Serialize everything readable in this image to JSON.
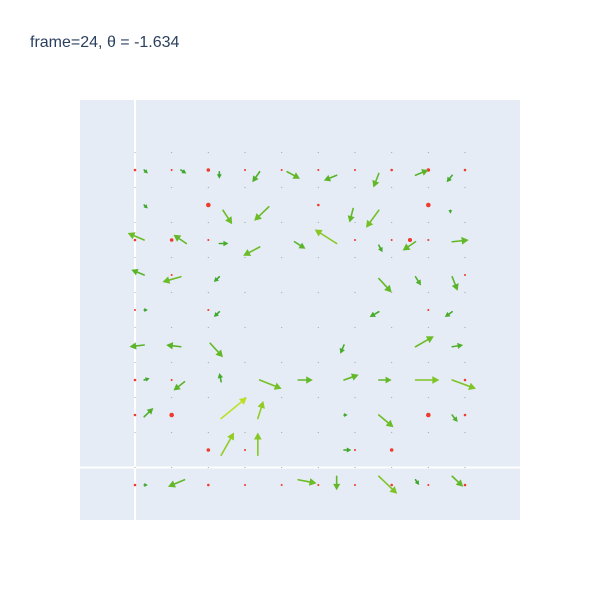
{
  "title": {
    "frame_label": "frame",
    "frame": 24,
    "theta_label": "θ",
    "theta": "-1.634"
  },
  "colors": {
    "background": "#e5ecf6",
    "zero_line": "#ffffff",
    "dot": "#ef3b2c",
    "arrow_dark": "#2ca02c",
    "arrow_light": "#e3ef1e"
  },
  "chart_data": {
    "type": "quiver",
    "title": "frame=24, θ =  -1.634",
    "xlabel": "",
    "ylabel": "",
    "xlim": [
      -0.3,
      2.1
    ],
    "ylim": [
      -0.3,
      2.1
    ],
    "grid": false,
    "zero_lines": true,
    "grid_x": [
      0.0,
      0.2,
      0.4,
      0.6,
      0.8,
      1.0,
      1.2,
      1.4,
      1.6,
      1.8
    ],
    "grid_y": [
      0.0,
      0.2,
      0.4,
      0.6,
      0.8,
      1.0,
      1.2,
      1.4,
      1.6,
      1.8
    ],
    "markers": [
      {
        "x": 0.0,
        "y": 1.7,
        "size": 2
      },
      {
        "x": 0.2,
        "y": 1.7,
        "size": 1.5
      },
      {
        "x": 0.4,
        "y": 1.7,
        "size": 3
      },
      {
        "x": 0.6,
        "y": 1.7,
        "size": 1.5
      },
      {
        "x": 0.8,
        "y": 1.7,
        "size": 1.5
      },
      {
        "x": 1.0,
        "y": 1.7,
        "size": 1.5
      },
      {
        "x": 1.2,
        "y": 1.7,
        "size": 1.5
      },
      {
        "x": 1.4,
        "y": 1.7,
        "size": 2
      },
      {
        "x": 1.6,
        "y": 1.7,
        "size": 3
      },
      {
        "x": 1.8,
        "y": 1.7,
        "size": 2
      },
      {
        "x": 0.4,
        "y": 1.5,
        "size": 4
      },
      {
        "x": 1.0,
        "y": 1.5,
        "size": 2
      },
      {
        "x": 1.6,
        "y": 1.5,
        "size": 4
      },
      {
        "x": 0.0,
        "y": 1.3,
        "size": 2
      },
      {
        "x": 0.2,
        "y": 1.3,
        "size": 3
      },
      {
        "x": 0.4,
        "y": 1.3,
        "size": 1.5
      },
      {
        "x": 1.2,
        "y": 1.3,
        "size": 1.5
      },
      {
        "x": 1.4,
        "y": 1.3,
        "size": 1.5
      },
      {
        "x": 1.6,
        "y": 1.3,
        "size": 1.5
      },
      {
        "x": 1.8,
        "y": 1.3,
        "size": 2
      },
      {
        "x": 1.5,
        "y": 1.3,
        "size": 3.5
      },
      {
        "x": 0.2,
        "y": 1.1,
        "size": 1.5
      },
      {
        "x": 1.8,
        "y": 1.1,
        "size": 1.5
      },
      {
        "x": 0.0,
        "y": 0.9,
        "size": 1.5
      },
      {
        "x": 0.4,
        "y": 0.9,
        "size": 1.5
      },
      {
        "x": 1.6,
        "y": 0.9,
        "size": 1.5
      },
      {
        "x": 0.0,
        "y": 0.5,
        "size": 2
      },
      {
        "x": 0.2,
        "y": 0.5,
        "size": 1.5
      },
      {
        "x": 1.8,
        "y": 0.5,
        "size": 2
      },
      {
        "x": 0.0,
        "y": 0.3,
        "size": 2
      },
      {
        "x": 0.2,
        "y": 0.3,
        "size": 4
      },
      {
        "x": 1.6,
        "y": 0.3,
        "size": 4
      },
      {
        "x": 1.8,
        "y": 0.3,
        "size": 2
      },
      {
        "x": 0.4,
        "y": 0.1,
        "size": 3
      },
      {
        "x": 0.6,
        "y": 0.1,
        "size": 1.5
      },
      {
        "x": 1.2,
        "y": 0.1,
        "size": 1.5
      },
      {
        "x": 1.4,
        "y": 0.1,
        "size": 3
      },
      {
        "x": 0.0,
        "y": -0.1,
        "size": 2
      },
      {
        "x": 0.2,
        "y": -0.1,
        "size": 1.5
      },
      {
        "x": 0.4,
        "y": -0.1,
        "size": 2
      },
      {
        "x": 0.6,
        "y": -0.1,
        "size": 1.5
      },
      {
        "x": 0.8,
        "y": -0.1,
        "size": 1.5
      },
      {
        "x": 1.0,
        "y": -0.1,
        "size": 1.5
      },
      {
        "x": 1.2,
        "y": -0.1,
        "size": 1.5
      },
      {
        "x": 1.4,
        "y": -0.1,
        "size": 2
      },
      {
        "x": 1.6,
        "y": -0.1,
        "size": 1.5
      },
      {
        "x": 1.8,
        "y": -0.1,
        "size": 2
      }
    ],
    "arrows": [
      {
        "x": 0.05,
        "y": 1.7,
        "u": 0.02,
        "v": -0.02,
        "c": 0.1
      },
      {
        "x": 0.25,
        "y": 1.7,
        "u": 0.03,
        "v": -0.02,
        "c": 0.1
      },
      {
        "x": 0.46,
        "y": 1.69,
        "u": 0.0,
        "v": -0.04,
        "c": 0.1
      },
      {
        "x": 0.68,
        "y": 1.69,
        "u": -0.04,
        "v": -0.06,
        "c": 0.2
      },
      {
        "x": 0.83,
        "y": 1.69,
        "u": 0.07,
        "v": -0.04,
        "c": 0.3
      },
      {
        "x": 1.1,
        "y": 1.67,
        "u": -0.07,
        "v": -0.03,
        "c": 0.25
      },
      {
        "x": 1.33,
        "y": 1.68,
        "u": -0.03,
        "v": -0.08,
        "c": 0.3
      },
      {
        "x": 1.53,
        "y": 1.67,
        "u": 0.07,
        "v": 0.03,
        "c": 0.25
      },
      {
        "x": 1.73,
        "y": 1.67,
        "u": -0.03,
        "v": -0.04,
        "c": 0.15
      },
      {
        "x": 0.05,
        "y": 1.5,
        "u": 0.02,
        "v": -0.02,
        "c": 0.1
      },
      {
        "x": 0.48,
        "y": 1.47,
        "u": 0.05,
        "v": -0.08,
        "c": 0.35
      },
      {
        "x": 0.73,
        "y": 1.49,
        "u": -0.08,
        "v": -0.08,
        "c": 0.35
      },
      {
        "x": 1.19,
        "y": 1.48,
        "u": -0.02,
        "v": -0.08,
        "c": 0.3
      },
      {
        "x": 1.33,
        "y": 1.47,
        "u": -0.07,
        "v": -0.1,
        "c": 0.4
      },
      {
        "x": 1.72,
        "y": 1.47,
        "u": 0.0,
        "v": -0.02,
        "c": 0.1
      },
      {
        "x": 0.05,
        "y": 1.3,
        "u": -0.09,
        "v": 0.04,
        "c": 0.35
      },
      {
        "x": 0.28,
        "y": 1.28,
        "u": -0.07,
        "v": 0.05,
        "c": 0.3
      },
      {
        "x": 0.46,
        "y": 1.28,
        "u": 0.05,
        "v": 0.0,
        "c": 0.15
      },
      {
        "x": 0.68,
        "y": 1.26,
        "u": -0.09,
        "v": -0.05,
        "c": 0.35
      },
      {
        "x": 0.87,
        "y": 1.29,
        "u": 0.06,
        "v": -0.04,
        "c": 0.25
      },
      {
        "x": 1.1,
        "y": 1.28,
        "u": -0.12,
        "v": 0.08,
        "c": 0.5
      },
      {
        "x": 1.33,
        "y": 1.27,
        "u": 0.02,
        "v": -0.04,
        "c": 0.15
      },
      {
        "x": 1.53,
        "y": 1.29,
        "u": -0.07,
        "v": -0.05,
        "c": 0.3
      },
      {
        "x": 1.73,
        "y": 1.29,
        "u": 0.09,
        "v": 0.01,
        "c": 0.3
      },
      {
        "x": 0.05,
        "y": 1.1,
        "u": -0.07,
        "v": 0.03,
        "c": 0.25
      },
      {
        "x": 0.25,
        "y": 1.09,
        "u": -0.1,
        "v": -0.03,
        "c": 0.35
      },
      {
        "x": 0.46,
        "y": 1.09,
        "u": -0.03,
        "v": -0.03,
        "c": 0.1
      },
      {
        "x": 1.33,
        "y": 1.08,
        "u": 0.07,
        "v": -0.08,
        "c": 0.3
      },
      {
        "x": 1.53,
        "y": 1.09,
        "u": 0.03,
        "v": -0.05,
        "c": 0.2
      },
      {
        "x": 1.73,
        "y": 1.09,
        "u": 0.03,
        "v": -0.08,
        "c": 0.25
      },
      {
        "x": 0.05,
        "y": 0.9,
        "u": 0.02,
        "v": 0.0,
        "c": 0.05
      },
      {
        "x": 0.46,
        "y": 0.89,
        "u": -0.03,
        "v": -0.03,
        "c": 0.1
      },
      {
        "x": 1.33,
        "y": 0.89,
        "u": -0.05,
        "v": -0.03,
        "c": 0.15
      },
      {
        "x": 1.73,
        "y": 0.89,
        "u": -0.04,
        "v": -0.03,
        "c": 0.15
      },
      {
        "x": 0.05,
        "y": 0.7,
        "u": -0.08,
        "v": -0.01,
        "c": 0.25
      },
      {
        "x": 0.25,
        "y": 0.69,
        "u": -0.08,
        "v": 0.01,
        "c": 0.25
      },
      {
        "x": 0.41,
        "y": 0.71,
        "u": 0.07,
        "v": -0.08,
        "c": 0.3
      },
      {
        "x": 1.14,
        "y": 0.7,
        "u": -0.02,
        "v": -0.05,
        "c": 0.15
      },
      {
        "x": 1.53,
        "y": 0.69,
        "u": 0.1,
        "v": 0.06,
        "c": 0.35
      },
      {
        "x": 1.73,
        "y": 0.69,
        "u": 0.06,
        "v": 0.01,
        "c": 0.2
      },
      {
        "x": 0.05,
        "y": 0.5,
        "u": 0.03,
        "v": 0.01,
        "c": 0.1
      },
      {
        "x": 0.27,
        "y": 0.49,
        "u": -0.06,
        "v": -0.05,
        "c": 0.25
      },
      {
        "x": 0.47,
        "y": 0.49,
        "u": -0.01,
        "v": 0.05,
        "c": 0.15
      },
      {
        "x": 0.68,
        "y": 0.5,
        "u": 0.12,
        "v": -0.05,
        "c": 0.4
      },
      {
        "x": 0.89,
        "y": 0.5,
        "u": 0.08,
        "v": 0.0,
        "c": 0.3
      },
      {
        "x": 1.14,
        "y": 0.5,
        "u": 0.08,
        "v": 0.03,
        "c": 0.3
      },
      {
        "x": 1.33,
        "y": 0.5,
        "u": 0.07,
        "v": 0.0,
        "c": 0.3
      },
      {
        "x": 1.53,
        "y": 0.5,
        "u": 0.13,
        "v": 0.0,
        "c": 0.45
      },
      {
        "x": 1.73,
        "y": 0.5,
        "u": 0.13,
        "v": -0.05,
        "c": 0.45
      },
      {
        "x": 0.05,
        "y": 0.29,
        "u": 0.05,
        "v": 0.05,
        "c": 0.2
      },
      {
        "x": 0.47,
        "y": 0.28,
        "u": 0.14,
        "v": 0.12,
        "c": 0.8
      },
      {
        "x": 0.67,
        "y": 0.28,
        "u": 0.03,
        "v": 0.1,
        "c": 0.55
      },
      {
        "x": 1.14,
        "y": 0.3,
        "u": 0.02,
        "v": 0.0,
        "c": 0.1
      },
      {
        "x": 1.33,
        "y": 0.3,
        "u": 0.08,
        "v": -0.07,
        "c": 0.35
      },
      {
        "x": 1.73,
        "y": 0.3,
        "u": 0.03,
        "v": -0.04,
        "c": 0.2
      },
      {
        "x": 0.47,
        "y": 0.07,
        "u": 0.07,
        "v": 0.13,
        "c": 0.55
      },
      {
        "x": 0.67,
        "y": 0.07,
        "u": 0.0,
        "v": 0.13,
        "c": 0.5
      },
      {
        "x": 1.14,
        "y": 0.1,
        "u": 0.04,
        "v": 0.0,
        "c": 0.1
      },
      {
        "x": 0.05,
        "y": -0.1,
        "u": 0.02,
        "v": 0.0,
        "c": 0.1
      },
      {
        "x": 0.27,
        "y": -0.07,
        "u": -0.09,
        "v": -0.04,
        "c": 0.3
      },
      {
        "x": 0.89,
        "y": -0.07,
        "u": 0.1,
        "v": -0.02,
        "c": 0.35
      },
      {
        "x": 1.1,
        "y": -0.05,
        "u": 0.0,
        "v": -0.08,
        "c": 0.3
      },
      {
        "x": 1.33,
        "y": -0.05,
        "u": 0.1,
        "v": -0.1,
        "c": 0.45
      },
      {
        "x": 1.53,
        "y": -0.07,
        "u": 0.02,
        "v": -0.03,
        "c": 0.1
      },
      {
        "x": 1.73,
        "y": -0.05,
        "u": 0.06,
        "v": -0.06,
        "c": 0.3
      }
    ]
  }
}
